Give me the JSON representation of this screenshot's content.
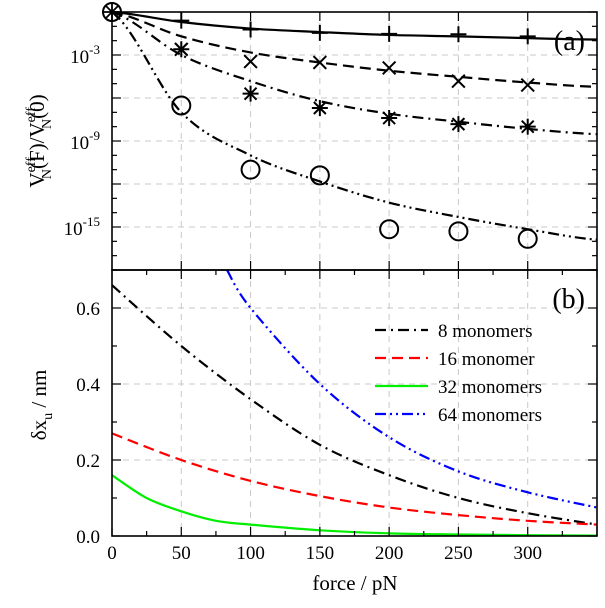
{
  "chart_data": [
    {
      "type": "scatter",
      "panel_label": "(a)",
      "ylabel": "V_N^eff(F)/V_N^eff(0)",
      "yscale": "log",
      "ylim": [
        1e-18,
        1
      ],
      "xlim": [
        0,
        350
      ],
      "grid": true,
      "y_ticks": [
        {
          "exp": -3,
          "label": "10",
          "sup": "-3"
        },
        {
          "exp": -9,
          "label": "10",
          "sup": "-9"
        },
        {
          "exp": -15,
          "label": "10",
          "sup": "-15"
        }
      ],
      "series": [
        {
          "marker": "circle-plus",
          "x": [
            0
          ],
          "y": [
            1
          ]
        },
        {
          "marker": "plus",
          "x": [
            50,
            100,
            150,
            200,
            250,
            300
          ],
          "y": [
            0.25,
            0.06,
            0.035,
            0.03,
            0.028,
            0.02
          ],
          "line": {
            "style": "solid",
            "x": [
              0,
              50,
              100,
              150,
              200,
              250,
              300,
              350
            ],
            "y": [
              1,
              0.2,
              0.07,
              0.04,
              0.025,
              0.02,
              0.015,
              0.012
            ]
          }
        },
        {
          "marker": "cross",
          "x": [
            50,
            100,
            150,
            200,
            250,
            300
          ],
          "y": [
            0.0025,
            0.00035,
            0.0003,
            0.000125,
            1.5e-05,
            8e-06
          ],
          "line": {
            "style": "dashed",
            "x": [
              0,
              50,
              100,
              150,
              200,
              250,
              300,
              350
            ],
            "y": [
              1,
              0.02,
              0.0015,
              0.0003,
              8e-05,
              3e-05,
              1.2e-05,
              6e-06
            ]
          }
        },
        {
          "marker": "asterisk",
          "x": [
            50,
            100,
            150,
            200,
            250,
            300
          ],
          "y": [
            0.0025,
            2e-06,
            2e-07,
            4e-08,
            1.5e-08,
            1e-08
          ],
          "line": {
            "style": "dashdot",
            "x": [
              0,
              50,
              100,
              150,
              200,
              250,
              300,
              350
            ],
            "y": [
              1,
              0.001,
              1.5e-05,
              6e-07,
              8e-08,
              2.2e-08,
              7e-09,
              3e-09
            ]
          }
        },
        {
          "marker": "circle",
          "x": [
            50,
            100,
            150,
            200,
            250,
            300
          ],
          "y": [
            3e-07,
            1e-11,
            4e-12,
            7e-16,
            5e-16,
            1.5e-16
          ],
          "line": {
            "style": "dashdotdot",
            "x": [
              0,
              50,
              100,
              150,
              200,
              250,
              300,
              350
            ],
            "y": [
              1,
              1e-07,
              1e-10,
              1.5e-12,
              5e-14,
              5e-15,
              7e-16,
              1.3e-16
            ]
          }
        }
      ]
    },
    {
      "type": "line",
      "panel_label": "(b)",
      "xlabel": "force / pN",
      "ylabel": "δx_u / nm",
      "xlim": [
        0,
        350
      ],
      "ylim": [
        0,
        0.7
      ],
      "x_ticks": [
        "0",
        "50",
        "100",
        "150",
        "200",
        "250",
        "300"
      ],
      "y_ticks": [
        "0.0",
        "0.2",
        "0.4",
        "0.6"
      ],
      "grid": true,
      "legend_position": "right",
      "series": [
        {
          "name": "8 monomers",
          "color": "#000000",
          "style": "dashdot",
          "x": [
            0,
            50,
            100,
            150,
            200,
            250,
            300,
            350
          ],
          "y": [
            0.66,
            0.5,
            0.36,
            0.24,
            0.16,
            0.1,
            0.06,
            0.03
          ]
        },
        {
          "name": "16 monomer",
          "color": "#ff0000",
          "style": "dashed",
          "x": [
            0,
            50,
            100,
            150,
            200,
            250,
            300,
            350
          ],
          "y": [
            0.27,
            0.2,
            0.145,
            0.105,
            0.075,
            0.055,
            0.04,
            0.03
          ]
        },
        {
          "name": "32 monomers",
          "color": "#00ee00",
          "style": "solid",
          "x": [
            0,
            25,
            50,
            75,
            100,
            150,
            200,
            250,
            300,
            350
          ],
          "y": [
            0.16,
            0.1,
            0.065,
            0.04,
            0.03,
            0.015,
            0.007,
            0.004,
            0.002,
            0.001
          ]
        },
        {
          "name": "64 monomers",
          "color": "#0000ff",
          "style": "dashdotdot",
          "x": [
            83,
            100,
            150,
            200,
            250,
            300,
            350
          ],
          "y": [
            0.7,
            0.6,
            0.4,
            0.26,
            0.17,
            0.115,
            0.075
          ]
        }
      ]
    }
  ]
}
